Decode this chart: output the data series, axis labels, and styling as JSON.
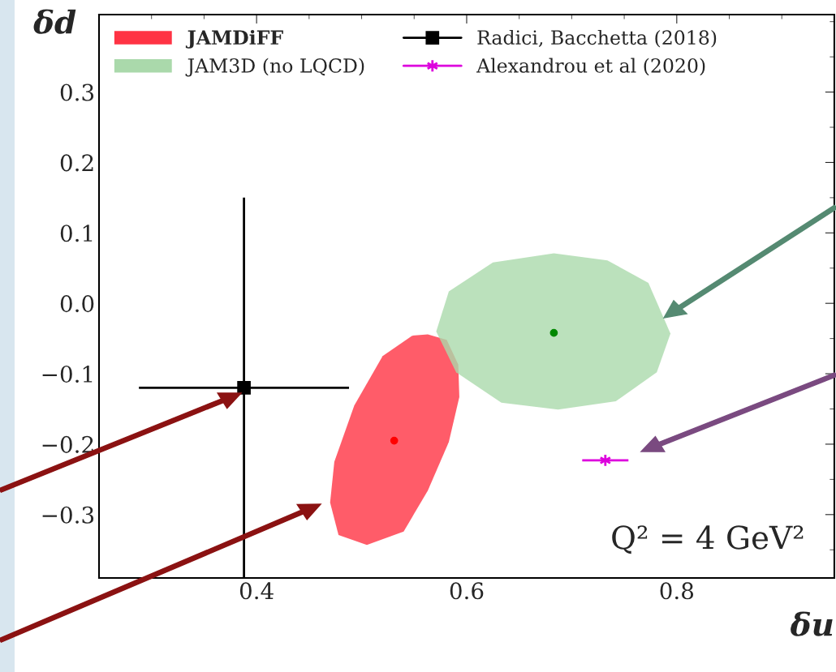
{
  "chart_data": {
    "type": "scatter",
    "xlabel": "δu",
    "ylabel": "δd",
    "xlim": [
      0.25,
      0.95
    ],
    "ylim": [
      -0.39,
      0.41
    ],
    "xticks": [
      0.4,
      0.6,
      0.8
    ],
    "yticks": [
      {
        "value": -0.3,
        "label": "−0.3"
      },
      {
        "value": -0.2,
        "label": "−0.2"
      },
      {
        "value": -0.1,
        "label": "−0.1"
      },
      {
        "value": 0.0,
        "label": "0.0"
      },
      0.1,
      0.2,
      0.3
    ],
    "grid": false,
    "legend": "top left",
    "annotations": [
      "Q² = 4 GeV²"
    ],
    "series": [
      {
        "name": "JAMDiFF",
        "type": "area",
        "color": "#ff3344",
        "x": [
          0.563,
          0.581,
          0.592,
          0.593,
          0.583,
          0.563,
          0.54,
          0.505,
          0.478,
          0.47,
          0.474,
          0.493,
          0.52,
          0.548
        ],
        "values": [
          -0.044,
          -0.052,
          -0.087,
          -0.133,
          -0.197,
          -0.266,
          -0.324,
          -0.343,
          -0.329,
          -0.283,
          -0.225,
          -0.145,
          -0.075,
          -0.046
        ]
      },
      {
        "name": "JAM3D (no LQCD)",
        "type": "area",
        "color": "#aad9ab",
        "x": [
          0.683,
          0.734,
          0.773,
          0.794,
          0.781,
          0.742,
          0.687,
          0.633,
          0.59,
          0.571,
          0.583,
          0.625
        ],
        "values": [
          0.071,
          0.061,
          0.029,
          -0.043,
          -0.098,
          -0.139,
          -0.151,
          -0.141,
          -0.098,
          -0.04,
          0.017,
          0.058
        ]
      },
      {
        "type": "scatter",
        "color": "#ff0000",
        "marker": "circle",
        "x": [
          0.531
        ],
        "values": [
          -0.195
        ]
      },
      {
        "type": "scatter",
        "color": "#008800",
        "marker": "circle",
        "x": [
          0.683
        ],
        "values": [
          -0.042
        ]
      },
      {
        "name": "Radici, Bacchetta (2018)",
        "type": "scatter",
        "color": "#000000",
        "marker": "square",
        "x": [
          0.388
        ],
        "values": [
          -0.12
        ],
        "errors": [
          0.27
        ],
        "xerrors": [
          0.1
        ]
      },
      {
        "name": "Alexandrou et al (2020)",
        "type": "scatter",
        "color": "#dd00dd",
        "marker": "cross",
        "x": [
          0.732
        ],
        "values": [
          -0.223
        ],
        "xerrors": [
          0.022
        ]
      }
    ]
  }
}
